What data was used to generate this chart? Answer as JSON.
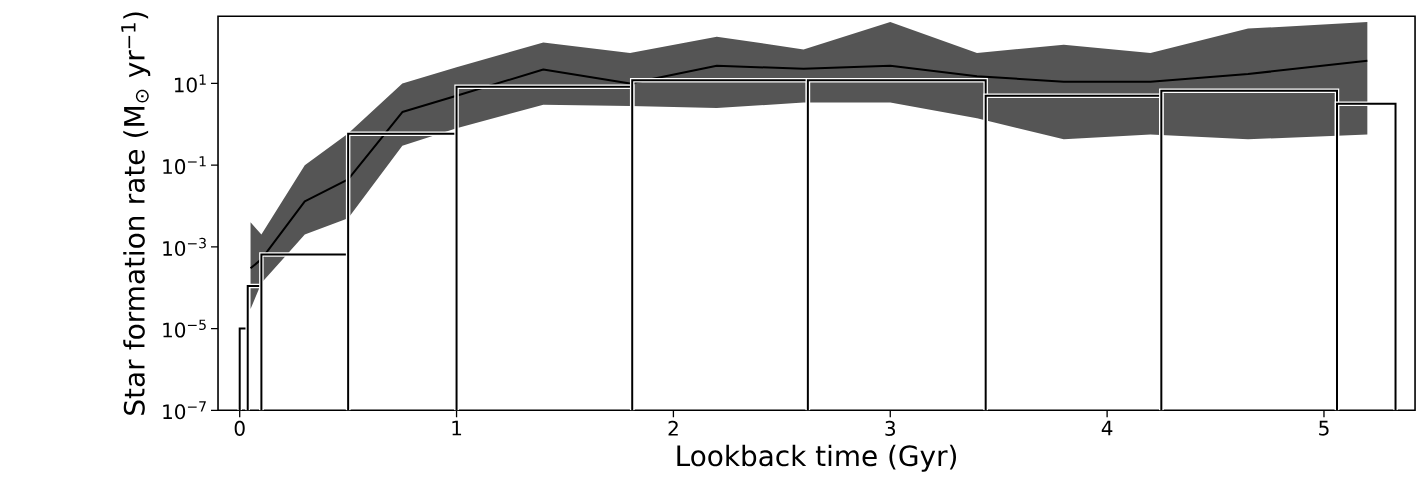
{
  "chart_data": {
    "type": "histogram",
    "xlabel": "Lookback time (Gyr)",
    "ylabel": "Star formation rate (M$_{⊙}$ yr$^{−1}$)",
    "log": "y",
    "xlim": [
      -0.1,
      5.42
    ],
    "ylim": [
      1e-07,
      440
    ],
    "xticks": [
      0,
      1,
      2,
      3,
      4,
      5
    ],
    "yticks": [
      {
        "value": 1e-07,
        "label": "10$^{−7}$"
      },
      {
        "value": 1e-05,
        "label": "10$^{−5}$"
      },
      {
        "value": 0.001,
        "label": "10$^{−3}$"
      },
      {
        "value": 0.1,
        "label": "10$^{−1}$"
      },
      {
        "value": 10,
        "label": "10$^{1}$"
      }
    ],
    "series": [
      {
        "type": "line",
        "color": "#000000",
        "x": [
          0.05,
          0.1,
          0.3,
          0.5,
          0.75,
          1.0,
          1.4,
          1.8,
          2.2,
          2.6,
          3.0,
          3.4,
          3.8,
          4.2,
          4.65,
          5.2
        ],
        "values": [
          0.0003,
          0.0005,
          0.013,
          0.045,
          2,
          5,
          22,
          10,
          27,
          23,
          27,
          15,
          11,
          11,
          17,
          36
        ],
        "lower": [
          3e-05,
          0.00013,
          0.002,
          0.005,
          0.3,
          0.8,
          3,
          2.8,
          2.5,
          3.4,
          3.4,
          1.4,
          0.43,
          0.56,
          0.43,
          0.56
        ],
        "upper": [
          0.004,
          0.002,
          0.1,
          0.6,
          10,
          25,
          100,
          56,
          140,
          68,
          320,
          56,
          89,
          56,
          220,
          320
        ]
      },
      {
        "type": "histogram",
        "color": "#000000",
        "bins": [
          0,
          0.037,
          0.1,
          0.5,
          1.0,
          1.81,
          2.62,
          3.44,
          4.25,
          5.06,
          5.33
        ],
        "values": [
          1e-05,
          0.00011,
          0.00065,
          0.59,
          8.3,
          12,
          12,
          5,
          6.6,
          3.2
        ]
      }
    ]
  }
}
